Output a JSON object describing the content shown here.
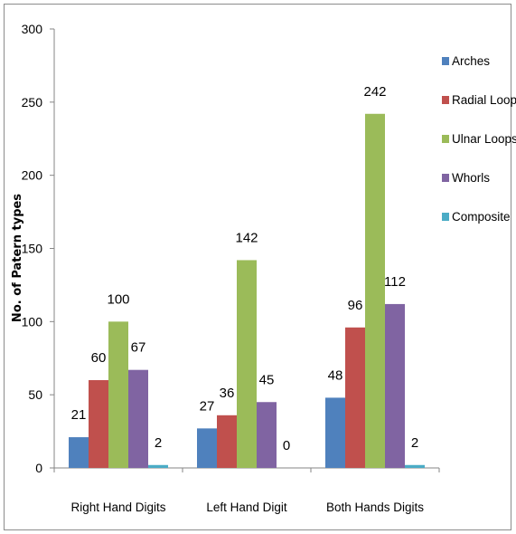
{
  "chart_data": {
    "type": "bar",
    "title": "",
    "xlabel": "",
    "ylabel": "No. of Patern types",
    "ylim": [
      0,
      300
    ],
    "yticks": [
      0,
      50,
      100,
      150,
      200,
      250,
      300
    ],
    "grid": false,
    "legend_position": "right",
    "categories": [
      "Right Hand Digits",
      "Left Hand Digit",
      "Both Hands Digits"
    ],
    "series": [
      {
        "name": "Arches",
        "color": "#4F81BD",
        "values": [
          21,
          27,
          48
        ]
      },
      {
        "name": "Radial Loops",
        "color": "#C0504D",
        "values": [
          60,
          36,
          96
        ]
      },
      {
        "name": "Ulnar Loops",
        "color": "#9BBB59",
        "values": [
          100,
          142,
          242
        ]
      },
      {
        "name": "Whorls",
        "color": "#8064A2",
        "values": [
          67,
          45,
          112
        ]
      },
      {
        "name": "Composite",
        "color": "#4BACC6",
        "values": [
          2,
          0,
          2
        ]
      }
    ]
  }
}
